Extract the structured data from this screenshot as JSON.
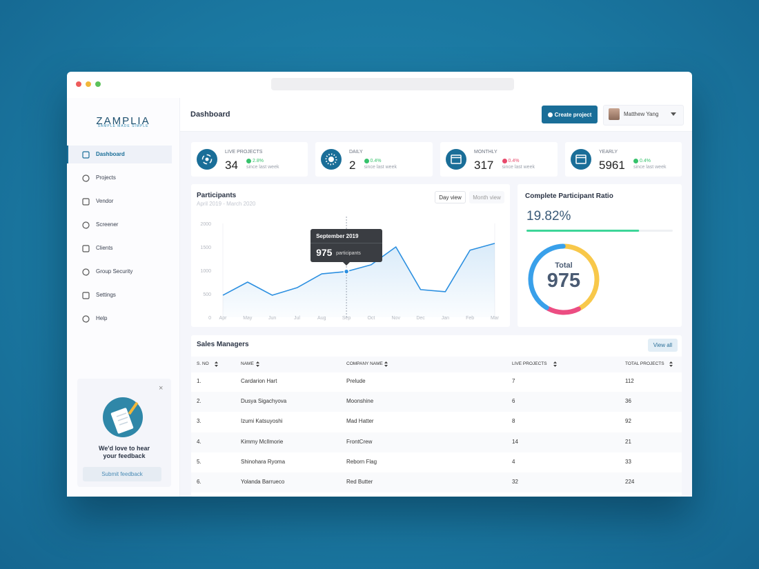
{
  "logo": {
    "name": "ZAMPLIA",
    "tagline": "SAMPLE MADE SIMPLE"
  },
  "nav": [
    "Dashboard",
    "Projects",
    "Vendor",
    "Screener",
    "Clients",
    "Group Security",
    "Settings",
    "Help"
  ],
  "feedback": {
    "title": "We'd love to hear your feedback",
    "button": "Submit feedback"
  },
  "header": {
    "title": "Dashboard",
    "button": "Create project",
    "user": "Matthew Yang"
  },
  "stats": [
    {
      "label": "LIVE PROJECTS",
      "value": "34",
      "change": "2.8%",
      "trend": "up",
      "note": "since last week"
    },
    {
      "label": "DAILY",
      "value": "2",
      "change": "0.4%",
      "trend": "up",
      "note": "since last week"
    },
    {
      "label": "MONTHLY",
      "value": "317",
      "change": "0.4%",
      "trend": "down",
      "note": "since last week"
    },
    {
      "label": "YEARLY",
      "value": "5961",
      "change": "0.4%",
      "trend": "up",
      "note": "since last week"
    }
  ],
  "chart_data": {
    "type": "line",
    "title": "Participants",
    "subtitle": "April 2019 - March 2020",
    "views": [
      "Day view",
      "Month view"
    ],
    "categories": [
      "Apr",
      "May",
      "Jun",
      "Jul",
      "Aug",
      "Sep",
      "Oct",
      "Nov",
      "Dec",
      "Jan",
      "Feb",
      "Mar"
    ],
    "values": [
      470,
      750,
      470,
      630,
      925,
      975,
      1120,
      1500,
      590,
      545,
      1430,
      1575
    ],
    "color": "#2b8fe0",
    "ylim": [
      0,
      2000
    ],
    "yticks": [
      0,
      500,
      1000,
      1500,
      2000
    ],
    "grid": false,
    "tooltip": {
      "title": "September 2019",
      "unit": "participants"
    }
  },
  "ratio": {
    "title": "Complete Participant Ratio",
    "percent": "19.82%",
    "progress": 77,
    "progress_color": "#3dd598",
    "total_label": "Total",
    "total": "975",
    "segments": [
      {
        "color": "#f8c84a",
        "value": 42
      },
      {
        "color": "#ec4d82",
        "value": 16
      },
      {
        "color": "#39a0ea",
        "value": 42
      }
    ]
  },
  "sales": {
    "title": "Sales Managers",
    "button": "View all",
    "columns": [
      "S. NO",
      "NAME",
      "COMPANY NAME",
      "LIVE PROJECTS",
      "TOTAL PROJECTS"
    ],
    "rows": [
      [
        "1.",
        "Cardarion Hart",
        "Prelude",
        "7",
        "112"
      ],
      [
        "2.",
        "Dusya Sigachyova",
        "Moonshine",
        "6",
        "36"
      ],
      [
        "3.",
        "Izumi Katsuyoshi",
        "Mad Hatter",
        "8",
        "92"
      ],
      [
        "4.",
        "Kimmy McIlmorie",
        "FrontCrew",
        "14",
        "21"
      ],
      [
        "5.",
        "Shinohara Ryoma",
        "Reborn Flag",
        "4",
        "33"
      ],
      [
        "6.",
        "Yolanda Barrueco",
        "Red Butter",
        "32",
        "224"
      ]
    ]
  }
}
